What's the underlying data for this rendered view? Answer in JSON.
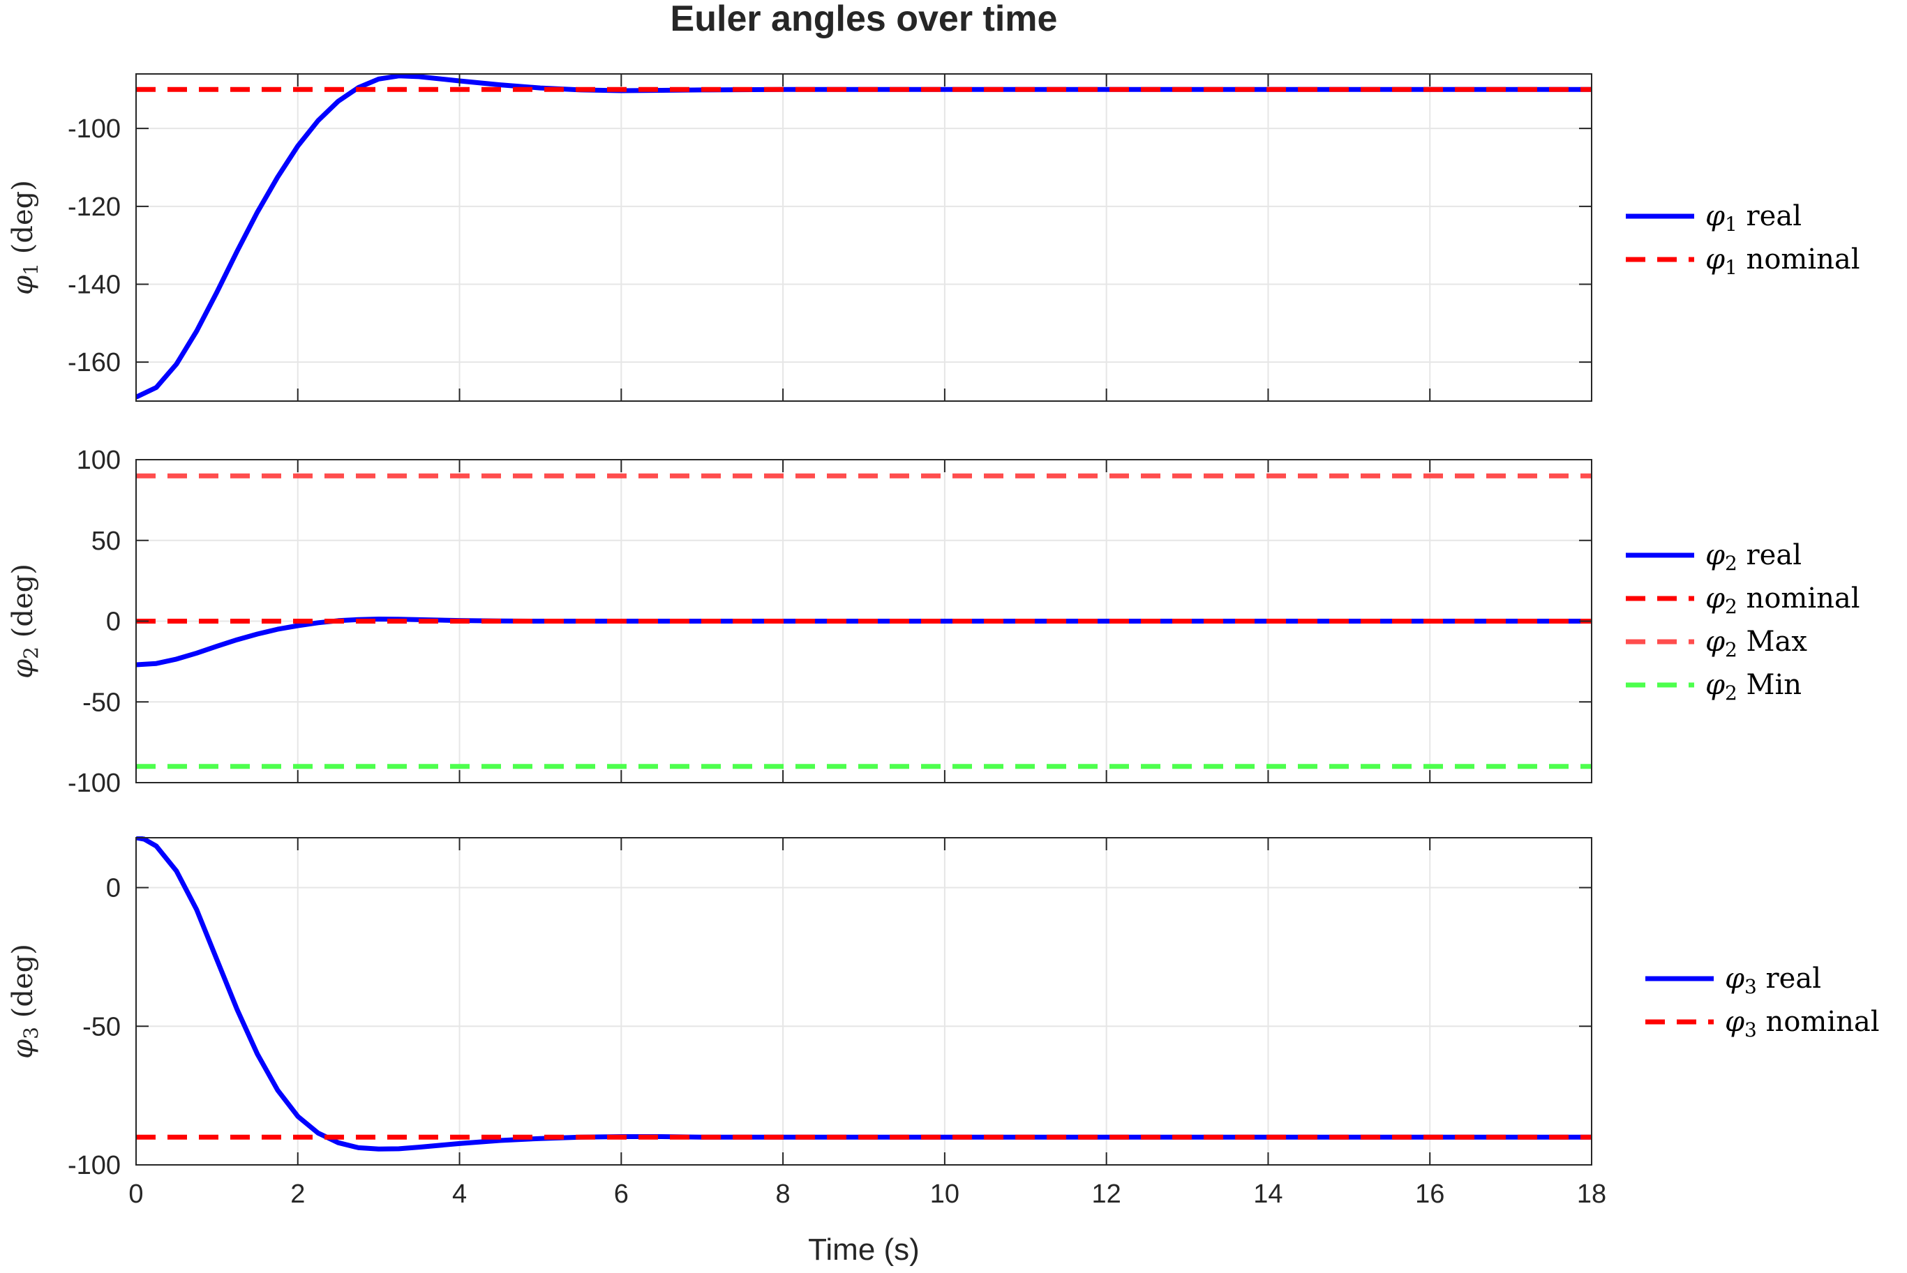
{
  "chart_data": {
    "type": "line",
    "title": "Euler angles over time",
    "xlabel": "Time (s)",
    "xlim": [
      0,
      18
    ],
    "xticks": [
      0,
      2,
      4,
      6,
      8,
      10,
      12,
      14,
      16,
      18
    ],
    "grid": true,
    "legend_position": "outside-right",
    "colors": {
      "real": "#0000ff",
      "nominal": "#ff0000",
      "max": "#ff4d4d",
      "min": "#4dff4d",
      "grid": "#e6e6e6",
      "axes": "#262626"
    },
    "subplots": [
      {
        "ylabel_symbol": "φ",
        "ylabel_sub": "1",
        "ylabel_unit": "(deg)",
        "ylim": [
          -170,
          -86
        ],
        "yticks": [
          -160,
          -140,
          -120,
          -100
        ],
        "ytick_labels": [
          "-160",
          "-140",
          "-120",
          "-100"
        ],
        "series": [
          {
            "name_symbol": "φ",
            "name_sub": "1",
            "name_text": "real",
            "style": "solid",
            "color_key": "real",
            "x": [
              0,
              0.25,
              0.5,
              0.75,
              1,
              1.25,
              1.5,
              1.75,
              2,
              2.25,
              2.5,
              2.75,
              3,
              3.25,
              3.5,
              4,
              4.5,
              5,
              5.5,
              6,
              6.5,
              7,
              8,
              10,
              12,
              14,
              16,
              18
            ],
            "y": [
              -169,
              -166.5,
              -160.5,
              -152,
              -142,
              -131.5,
              -121.5,
              -112.5,
              -104.5,
              -98,
              -93,
              -89.5,
              -87.3,
              -86.5,
              -86.7,
              -87.8,
              -88.8,
              -89.6,
              -90.1,
              -90.3,
              -90.2,
              -90.1,
              -90,
              -90,
              -90,
              -90,
              -90,
              -90
            ]
          },
          {
            "name_symbol": "φ",
            "name_sub": "1",
            "name_text": "nominal",
            "style": "dashed",
            "color_key": "nominal",
            "x": [
              0,
              18
            ],
            "y": [
              -90,
              -90
            ]
          }
        ]
      },
      {
        "ylabel_symbol": "φ",
        "ylabel_sub": "2",
        "ylabel_unit": "(deg)",
        "ylim": [
          -100,
          100
        ],
        "yticks": [
          -100,
          -50,
          0,
          50,
          100
        ],
        "ytick_labels": [
          "-100",
          "-50",
          "0",
          "50",
          "100"
        ],
        "series": [
          {
            "name_symbol": "φ",
            "name_sub": "2",
            "name_text": "real",
            "style": "solid",
            "color_key": "real",
            "x": [
              0,
              0.25,
              0.5,
              0.75,
              1,
              1.25,
              1.5,
              1.75,
              2,
              2.25,
              2.5,
              2.75,
              3,
              3.25,
              3.5,
              4,
              4.5,
              5,
              6,
              8,
              10,
              12,
              14,
              16,
              18
            ],
            "y": [
              -27,
              -26.2,
              -23.5,
              -19.8,
              -15.5,
              -11.5,
              -8,
              -5,
              -2.8,
              -1,
              0.3,
              1,
              1.3,
              1.2,
              0.9,
              0.4,
              0.1,
              0,
              0,
              0,
              0,
              0,
              0,
              0,
              0
            ]
          },
          {
            "name_symbol": "φ",
            "name_sub": "2",
            "name_text": "nominal",
            "style": "dashed",
            "color_key": "nominal",
            "x": [
              0,
              18
            ],
            "y": [
              0,
              0
            ]
          },
          {
            "name_symbol": "φ",
            "name_sub": "2",
            "name_text": "Max",
            "style": "dashed",
            "color_key": "max",
            "x": [
              0,
              18
            ],
            "y": [
              90,
              90
            ]
          },
          {
            "name_symbol": "φ",
            "name_sub": "2",
            "name_text": "Min",
            "style": "dashed",
            "color_key": "min",
            "x": [
              0,
              18
            ],
            "y": [
              -90,
              -90
            ]
          }
        ]
      },
      {
        "ylabel_symbol": "φ",
        "ylabel_sub": "3",
        "ylabel_unit": "(deg)",
        "ylim": [
          -100,
          18
        ],
        "yticks": [
          -100,
          -50,
          0
        ],
        "ytick_labels": [
          "-100",
          "-50",
          "0"
        ],
        "series": [
          {
            "name_symbol": "φ",
            "name_sub": "3",
            "name_text": "real",
            "style": "solid",
            "color_key": "real",
            "x": [
              0,
              0.1,
              0.25,
              0.5,
              0.75,
              1,
              1.25,
              1.5,
              1.75,
              2,
              2.25,
              2.5,
              2.75,
              3,
              3.25,
              3.5,
              4,
              4.5,
              5,
              5.5,
              6,
              6.5,
              7,
              8,
              10,
              12,
              14,
              16,
              18
            ],
            "y": [
              18,
              17.5,
              15,
              6,
              -8,
              -26,
              -44,
              -60,
              -73,
              -82.5,
              -88.5,
              -92,
              -93.8,
              -94.3,
              -94.2,
              -93.6,
              -92.3,
              -91.2,
              -90.5,
              -90,
              -89.8,
              -89.8,
              -90,
              -90,
              -90,
              -90,
              -90,
              -90,
              -90
            ]
          },
          {
            "name_symbol": "φ",
            "name_sub": "3",
            "name_text": "nominal",
            "style": "dashed",
            "color_key": "nominal",
            "x": [
              0,
              18
            ],
            "y": [
              -90,
              -90
            ]
          }
        ]
      }
    ]
  }
}
